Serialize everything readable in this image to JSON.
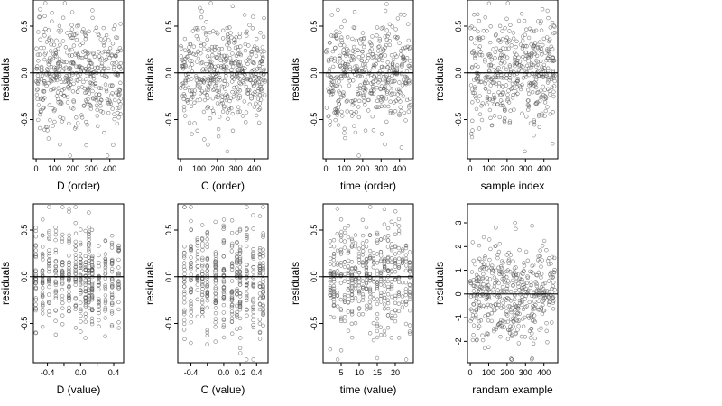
{
  "chart_data": [
    {
      "type": "scatter",
      "xlabel": "D (order)",
      "ylabel": "residuals",
      "xlim": [
        -15,
        475
      ],
      "ylim": [
        -0.92,
        0.78
      ],
      "xticks": [
        0,
        100,
        200,
        300,
        400
      ],
      "yticks": [
        -0.5,
        0.0,
        0.5
      ],
      "ytick_labels": [
        "-0.5",
        "0.0",
        "0.5"
      ],
      "hline": 0,
      "point_count": 460,
      "x_kind": "index",
      "x_range": [
        0,
        460
      ],
      "y_center": 0.0,
      "y_spread": 0.28
    },
    {
      "type": "scatter",
      "xlabel": "C (order)",
      "ylabel": "residuals",
      "xlim": [
        -15,
        475
      ],
      "ylim": [
        -0.92,
        0.78
      ],
      "xticks": [
        0,
        100,
        200,
        300,
        400
      ],
      "yticks": [
        -0.5,
        0.0,
        0.5
      ],
      "ytick_labels": [
        "-0.5",
        "0.0",
        "0.5"
      ],
      "hline": 0,
      "point_count": 460,
      "x_kind": "index",
      "x_range": [
        0,
        460
      ],
      "y_center": 0.0,
      "y_spread": 0.28
    },
    {
      "type": "scatter",
      "xlabel": "time (order)",
      "ylabel": "residuals",
      "xlim": [
        -15,
        475
      ],
      "ylim": [
        -0.92,
        0.78
      ],
      "xticks": [
        0,
        100,
        200,
        300,
        400
      ],
      "yticks": [
        -0.5,
        0.0,
        0.5
      ],
      "ytick_labels": [
        "-0.5",
        "0.0",
        "0.5"
      ],
      "hline": 0,
      "point_count": 460,
      "x_kind": "index",
      "x_range": [
        0,
        460
      ],
      "y_center": 0.0,
      "y_spread": 0.28
    },
    {
      "type": "scatter",
      "xlabel": "sample index",
      "ylabel": "residuals",
      "xlim": [
        -15,
        475
      ],
      "ylim": [
        -0.92,
        0.78
      ],
      "xticks": [
        0,
        100,
        200,
        300,
        400
      ],
      "yticks": [
        -0.5,
        0.0,
        0.5
      ],
      "ytick_labels": [
        "-0.5",
        "0.0",
        "0.5"
      ],
      "hline": 0,
      "point_count": 460,
      "x_kind": "index",
      "x_range": [
        0,
        460
      ],
      "y_center": 0.0,
      "y_spread": 0.28
    },
    {
      "type": "scatter",
      "xlabel": "D (value)",
      "ylabel": "residuals",
      "xlim": [
        -0.57,
        0.52
      ],
      "ylim": [
        -0.92,
        0.78
      ],
      "xticks": [
        -0.4,
        -0.2,
        0.0,
        0.2,
        0.4
      ],
      "xtick_labels": [
        "-0.4",
        "",
        "0.0",
        "",
        "0.4"
      ],
      "yticks": [
        -0.5,
        0.0,
        0.5
      ],
      "ytick_labels": [
        "-0.5",
        "0.0",
        "0.5"
      ],
      "hline": 0,
      "point_count": 460,
      "x_kind": "levels",
      "x_levels": [
        -0.54,
        -0.46,
        -0.38,
        -0.3,
        -0.22,
        -0.14,
        -0.06,
        0.0,
        0.06,
        0.1,
        0.14,
        0.22,
        0.3,
        0.38,
        0.46
      ],
      "y_center": 0.0,
      "y_spread": 0.28
    },
    {
      "type": "scatter",
      "xlabel": "C (value)",
      "ylabel": "residuals",
      "xlim": [
        -0.56,
        0.54
      ],
      "ylim": [
        -0.92,
        0.78
      ],
      "xticks": [
        -0.4,
        -0.2,
        0.0,
        0.2,
        0.4
      ],
      "xtick_labels": [
        "-0.4",
        "",
        "0.0",
        "0.2",
        "0.4"
      ],
      "yticks": [
        -0.5,
        0.0,
        0.5
      ],
      "ytick_labels": [
        "-0.5",
        "0.0",
        "0.5"
      ],
      "hline": 0,
      "point_count": 460,
      "x_kind": "levels",
      "x_levels": [
        -0.48,
        -0.4,
        -0.32,
        -0.26,
        -0.2,
        -0.1,
        0.0,
        0.1,
        0.16,
        0.2,
        0.28,
        0.36,
        0.44,
        0.48
      ],
      "y_center": 0.0,
      "y_spread": 0.3
    },
    {
      "type": "scatter",
      "xlabel": "time (value)",
      "ylabel": "residuals",
      "xlim": [
        0,
        25
      ],
      "ylim": [
        -0.92,
        0.78
      ],
      "xticks": [
        5,
        10,
        15,
        20
      ],
      "yticks": [
        -0.5,
        0.0,
        0.5
      ],
      "ytick_labels": [
        "-0.5",
        "0.0",
        "0.5"
      ],
      "hline": 0,
      "point_count": 460,
      "x_kind": "levels",
      "x_levels": [
        2,
        3,
        4,
        5,
        6,
        7,
        8,
        9,
        10,
        11,
        12,
        13,
        14,
        15,
        16,
        17,
        18,
        19,
        20,
        21,
        22,
        23,
        24
      ],
      "y_center": 0.0,
      "y_spread": 0.28
    },
    {
      "type": "scatter",
      "xlabel": "randam example",
      "ylabel": "residuals",
      "xlim": [
        -15,
        475
      ],
      "ylim": [
        -2.9,
        3.8
      ],
      "xticks": [
        0,
        100,
        200,
        300,
        400
      ],
      "yticks": [
        -2,
        -1,
        0,
        1,
        2,
        3
      ],
      "ytick_labels": [
        "-2",
        "-1",
        "0",
        "1",
        "2",
        "3"
      ],
      "hline": 0,
      "point_count": 460,
      "x_kind": "index",
      "x_range": [
        0,
        460
      ],
      "y_center": 0.0,
      "y_spread": 1.0
    }
  ]
}
